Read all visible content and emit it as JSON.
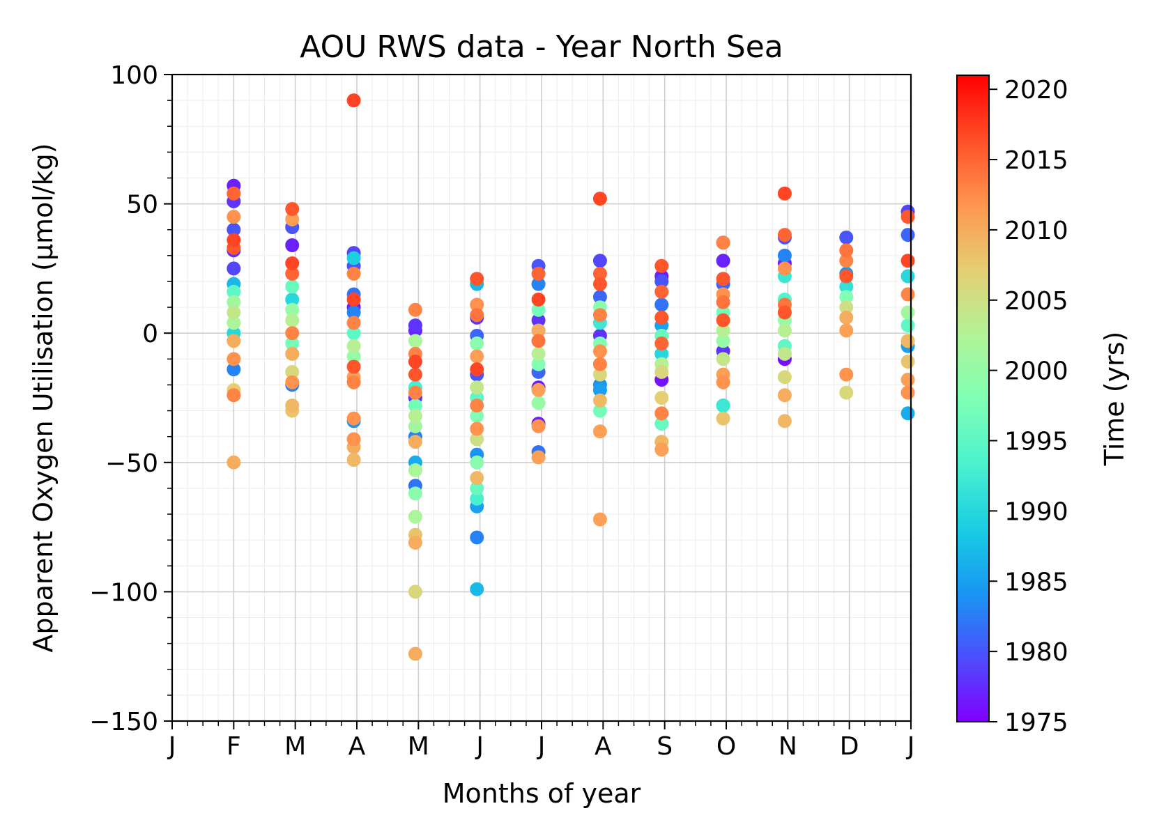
{
  "chart_data": {
    "type": "scatter",
    "title": "AOU RWS data - Year North Sea",
    "xlabel": "Months of year",
    "ylabel": "Apparent Oxygen Utilisation (µmol/kg)",
    "x_ticks": [
      "J",
      "F",
      "M",
      "A",
      "M",
      "J",
      "J",
      "A",
      "S",
      "O",
      "N",
      "D",
      "J"
    ],
    "ylim": [
      -150,
      100
    ],
    "y_ticks": [
      100,
      50,
      0,
      -50,
      -100,
      -150
    ],
    "y_tick_labels": [
      "100",
      "50",
      "0",
      "−50",
      "−100",
      "−150"
    ],
    "grid": true,
    "colorbar": {
      "label": "Time (yrs)",
      "range": [
        1975,
        2021
      ],
      "ticks": [
        1975,
        1980,
        1985,
        1990,
        1995,
        2000,
        2005,
        2010,
        2015,
        2020
      ],
      "colormap": "rainbow"
    },
    "points": [
      {
        "month": 1,
        "aou": 57,
        "year": 1977
      },
      {
        "month": 1,
        "aou": 54,
        "year": 2015
      },
      {
        "month": 1,
        "aou": 51,
        "year": 1978
      },
      {
        "month": 1,
        "aou": 45,
        "year": 2012
      },
      {
        "month": 1,
        "aou": 40,
        "year": 1980
      },
      {
        "month": 1,
        "aou": 36,
        "year": 2017
      },
      {
        "month": 1,
        "aou": 33,
        "year": 2016
      },
      {
        "month": 1,
        "aou": 32,
        "year": 1978
      },
      {
        "month": 1,
        "aou": 25,
        "year": 1979
      },
      {
        "month": 1,
        "aou": 19,
        "year": 1987
      },
      {
        "month": 1,
        "aou": 16,
        "year": 1995
      },
      {
        "month": 1,
        "aou": 12,
        "year": 2001
      },
      {
        "month": 1,
        "aou": 8,
        "year": 2004
      },
      {
        "month": 1,
        "aou": 4,
        "year": 2002
      },
      {
        "month": 1,
        "aou": 0,
        "year": 1990
      },
      {
        "month": 1,
        "aou": -3,
        "year": 2010
      },
      {
        "month": 1,
        "aou": -10,
        "year": 2012
      },
      {
        "month": 1,
        "aou": -14,
        "year": 1983
      },
      {
        "month": 1,
        "aou": -22,
        "year": 2007
      },
      {
        "month": 1,
        "aou": -24,
        "year": 2013
      },
      {
        "month": 1,
        "aou": -50,
        "year": 2010
      },
      {
        "month": 1.95,
        "aou": 48,
        "year": 2016
      },
      {
        "month": 1.95,
        "aou": 44,
        "year": 2011
      },
      {
        "month": 1.95,
        "aou": 41,
        "year": 1980
      },
      {
        "month": 1.95,
        "aou": 34,
        "year": 1977
      },
      {
        "month": 1.95,
        "aou": 27,
        "year": 2017
      },
      {
        "month": 1.95,
        "aou": 23,
        "year": 2015
      },
      {
        "month": 1.95,
        "aou": 18,
        "year": 1996
      },
      {
        "month": 1.95,
        "aou": 13,
        "year": 1990
      },
      {
        "month": 1.95,
        "aou": 9,
        "year": 2000
      },
      {
        "month": 1.95,
        "aou": 5,
        "year": 2003
      },
      {
        "month": 1.95,
        "aou": 0,
        "year": 2013
      },
      {
        "month": 1.95,
        "aou": -4,
        "year": 1997
      },
      {
        "month": 1.95,
        "aou": -8,
        "year": 2010
      },
      {
        "month": 1.95,
        "aou": -15,
        "year": 2006
      },
      {
        "month": 1.95,
        "aou": -19,
        "year": 2012
      },
      {
        "month": 1.95,
        "aou": -20,
        "year": 1983
      },
      {
        "month": 1.95,
        "aou": -28,
        "year": 2009
      },
      {
        "month": 1.95,
        "aou": -30,
        "year": 2008
      },
      {
        "month": 2.95,
        "aou": 90,
        "year": 2017
      },
      {
        "month": 2.95,
        "aou": 31,
        "year": 1979
      },
      {
        "month": 2.95,
        "aou": 29,
        "year": 1989
      },
      {
        "month": 2.95,
        "aou": 26,
        "year": 1980
      },
      {
        "month": 2.95,
        "aou": 23,
        "year": 2013
      },
      {
        "month": 2.95,
        "aou": 15,
        "year": 1982
      },
      {
        "month": 2.95,
        "aou": 13,
        "year": 2017
      },
      {
        "month": 2.95,
        "aou": 10,
        "year": 1977
      },
      {
        "month": 2.95,
        "aou": 8,
        "year": 1983
      },
      {
        "month": 2.95,
        "aou": 4,
        "year": 2013
      },
      {
        "month": 2.95,
        "aou": 0,
        "year": 1995
      },
      {
        "month": 2.95,
        "aou": -5,
        "year": 2003
      },
      {
        "month": 2.95,
        "aou": -9,
        "year": 2000
      },
      {
        "month": 2.95,
        "aou": -13,
        "year": 2016
      },
      {
        "month": 2.95,
        "aou": -17,
        "year": 2011
      },
      {
        "month": 2.95,
        "aou": -19,
        "year": 2013
      },
      {
        "month": 2.95,
        "aou": -33,
        "year": 2012
      },
      {
        "month": 2.95,
        "aou": -34,
        "year": 1984
      },
      {
        "month": 2.95,
        "aou": -41,
        "year": 2012
      },
      {
        "month": 2.95,
        "aou": -44,
        "year": 2010
      },
      {
        "month": 2.95,
        "aou": -49,
        "year": 2009
      },
      {
        "month": 3.95,
        "aou": 9,
        "year": 2013
      },
      {
        "month": 3.95,
        "aou": 3,
        "year": 1978
      },
      {
        "month": 3.95,
        "aou": 1,
        "year": 1977
      },
      {
        "month": 3.95,
        "aou": -3,
        "year": 2002
      },
      {
        "month": 3.95,
        "aou": -8,
        "year": 2013
      },
      {
        "month": 3.95,
        "aou": -11,
        "year": 2017
      },
      {
        "month": 3.95,
        "aou": -16,
        "year": 2016
      },
      {
        "month": 3.95,
        "aou": -21,
        "year": 1993
      },
      {
        "month": 3.95,
        "aou": -23,
        "year": 2013
      },
      {
        "month": 3.95,
        "aou": -25,
        "year": 1978
      },
      {
        "month": 3.95,
        "aou": -28,
        "year": 1997
      },
      {
        "month": 3.95,
        "aou": -32,
        "year": 2003
      },
      {
        "month": 3.95,
        "aou": -36,
        "year": 2001
      },
      {
        "month": 3.95,
        "aou": -40,
        "year": 1983
      },
      {
        "month": 3.95,
        "aou": -42,
        "year": 2010
      },
      {
        "month": 3.95,
        "aou": -50,
        "year": 1986
      },
      {
        "month": 3.95,
        "aou": -53,
        "year": 2002
      },
      {
        "month": 3.95,
        "aou": -59,
        "year": 1982
      },
      {
        "month": 3.95,
        "aou": -62,
        "year": 1999
      },
      {
        "month": 3.95,
        "aou": -71,
        "year": 2002
      },
      {
        "month": 3.95,
        "aou": -78,
        "year": 2008
      },
      {
        "month": 3.95,
        "aou": -81,
        "year": 2010
      },
      {
        "month": 3.95,
        "aou": -100,
        "year": 2006
      },
      {
        "month": 3.95,
        "aou": -124,
        "year": 2010
      },
      {
        "month": 4.95,
        "aou": 21,
        "year": 2016
      },
      {
        "month": 4.95,
        "aou": 19,
        "year": 1987
      },
      {
        "month": 4.95,
        "aou": 11,
        "year": 2012
      },
      {
        "month": 4.95,
        "aou": 7,
        "year": 2014
      },
      {
        "month": 4.95,
        "aou": 6,
        "year": 1978
      },
      {
        "month": 4.95,
        "aou": -1,
        "year": 1981
      },
      {
        "month": 4.95,
        "aou": -4,
        "year": 1999
      },
      {
        "month": 4.95,
        "aou": -9,
        "year": 2011
      },
      {
        "month": 4.95,
        "aou": -14,
        "year": 2017
      },
      {
        "month": 4.95,
        "aou": -16,
        "year": 1980
      },
      {
        "month": 4.95,
        "aou": -21,
        "year": 2004
      },
      {
        "month": 4.95,
        "aou": -25,
        "year": 1995
      },
      {
        "month": 4.95,
        "aou": -28,
        "year": 2013
      },
      {
        "month": 4.95,
        "aou": -32,
        "year": 1998
      },
      {
        "month": 4.95,
        "aou": -37,
        "year": 2012
      },
      {
        "month": 4.95,
        "aou": -41,
        "year": 2005
      },
      {
        "month": 4.95,
        "aou": -47,
        "year": 1984
      },
      {
        "month": 4.95,
        "aou": -50,
        "year": 1999
      },
      {
        "month": 4.95,
        "aou": -56,
        "year": 2009
      },
      {
        "month": 4.95,
        "aou": -60,
        "year": 1996
      },
      {
        "month": 4.95,
        "aou": -64,
        "year": 1993
      },
      {
        "month": 4.95,
        "aou": -67,
        "year": 1985
      },
      {
        "month": 4.95,
        "aou": -79,
        "year": 1983
      },
      {
        "month": 4.95,
        "aou": -99,
        "year": 1987
      },
      {
        "month": 5.95,
        "aou": 26,
        "year": 1980
      },
      {
        "month": 5.95,
        "aou": 23,
        "year": 2015
      },
      {
        "month": 5.95,
        "aou": 19,
        "year": 1983
      },
      {
        "month": 5.95,
        "aou": 13,
        "year": 2017
      },
      {
        "month": 5.95,
        "aou": 9,
        "year": 1997
      },
      {
        "month": 5.95,
        "aou": 5,
        "year": 1978
      },
      {
        "month": 5.95,
        "aou": 1,
        "year": 2010
      },
      {
        "month": 5.95,
        "aou": -3,
        "year": 2014
      },
      {
        "month": 5.95,
        "aou": -8,
        "year": 2003
      },
      {
        "month": 5.95,
        "aou": -12,
        "year": 1998
      },
      {
        "month": 5.95,
        "aou": -15,
        "year": 1981
      },
      {
        "month": 5.95,
        "aou": -21,
        "year": 1977
      },
      {
        "month": 5.95,
        "aou": -22,
        "year": 2011
      },
      {
        "month": 5.95,
        "aou": -27,
        "year": 2000
      },
      {
        "month": 5.95,
        "aou": -35,
        "year": 1977
      },
      {
        "month": 5.95,
        "aou": -36,
        "year": 2012
      },
      {
        "month": 5.95,
        "aou": -46,
        "year": 1982
      },
      {
        "month": 5.95,
        "aou": -48,
        "year": 2011
      },
      {
        "month": 6.95,
        "aou": 52,
        "year": 2017
      },
      {
        "month": 6.95,
        "aou": 28,
        "year": 1979
      },
      {
        "month": 6.95,
        "aou": 23,
        "year": 2015
      },
      {
        "month": 6.95,
        "aou": 19,
        "year": 2016
      },
      {
        "month": 6.95,
        "aou": 14,
        "year": 1981
      },
      {
        "month": 6.95,
        "aou": 10,
        "year": 1999
      },
      {
        "month": 6.95,
        "aou": 7,
        "year": 2013
      },
      {
        "month": 6.95,
        "aou": 4,
        "year": 1992
      },
      {
        "month": 6.95,
        "aou": -1,
        "year": 1978
      },
      {
        "month": 6.95,
        "aou": -4,
        "year": 1998
      },
      {
        "month": 6.95,
        "aou": -7,
        "year": 2012
      },
      {
        "month": 6.95,
        "aou": -12,
        "year": 2013
      },
      {
        "month": 6.95,
        "aou": -16,
        "year": 2006
      },
      {
        "month": 6.95,
        "aou": -20,
        "year": 1984
      },
      {
        "month": 6.95,
        "aou": -22,
        "year": 1985
      },
      {
        "month": 6.95,
        "aou": -26,
        "year": 2009
      },
      {
        "month": 6.95,
        "aou": -30,
        "year": 1997
      },
      {
        "month": 6.95,
        "aou": -38,
        "year": 2011
      },
      {
        "month": 6.95,
        "aou": -72,
        "year": 2011
      },
      {
        "month": 7.95,
        "aou": 26,
        "year": 2016
      },
      {
        "month": 7.95,
        "aou": 22,
        "year": 1977
      },
      {
        "month": 7.95,
        "aou": 20,
        "year": 1980
      },
      {
        "month": 7.95,
        "aou": 16,
        "year": 2015
      },
      {
        "month": 7.95,
        "aou": 11,
        "year": 1982
      },
      {
        "month": 7.95,
        "aou": 6,
        "year": 2016
      },
      {
        "month": 7.95,
        "aou": 3,
        "year": 1985
      },
      {
        "month": 7.95,
        "aou": -1,
        "year": 1996
      },
      {
        "month": 7.95,
        "aou": -4,
        "year": 2015
      },
      {
        "month": 7.95,
        "aou": -8,
        "year": 1990
      },
      {
        "month": 7.95,
        "aou": -12,
        "year": 2003
      },
      {
        "month": 7.95,
        "aou": -15,
        "year": 2006
      },
      {
        "month": 7.95,
        "aou": -18,
        "year": 1976
      },
      {
        "month": 7.95,
        "aou": -25,
        "year": 2007
      },
      {
        "month": 7.95,
        "aou": -31,
        "year": 2013
      },
      {
        "month": 7.95,
        "aou": -35,
        "year": 1996
      },
      {
        "month": 7.95,
        "aou": -42,
        "year": 2009
      },
      {
        "month": 7.95,
        "aou": -45,
        "year": 2011
      },
      {
        "month": 8.95,
        "aou": 35,
        "year": 1978
      },
      {
        "month": 8.95,
        "aou": 35,
        "year": 2013
      },
      {
        "month": 8.95,
        "aou": 28,
        "year": 1977
      },
      {
        "month": 8.95,
        "aou": 21,
        "year": 2016
      },
      {
        "month": 8.95,
        "aou": 19,
        "year": 1981
      },
      {
        "month": 8.95,
        "aou": 15,
        "year": 2012
      },
      {
        "month": 8.95,
        "aou": 12,
        "year": 2014
      },
      {
        "month": 8.95,
        "aou": 8,
        "year": 1997
      },
      {
        "month": 8.95,
        "aou": 5,
        "year": 2016
      },
      {
        "month": 8.95,
        "aou": 1,
        "year": 2003
      },
      {
        "month": 8.95,
        "aou": -3,
        "year": 2000
      },
      {
        "month": 8.95,
        "aou": -7,
        "year": 1978
      },
      {
        "month": 8.95,
        "aou": -10,
        "year": 2004
      },
      {
        "month": 8.95,
        "aou": -16,
        "year": 2011
      },
      {
        "month": 8.95,
        "aou": -19,
        "year": 2012
      },
      {
        "month": 8.95,
        "aou": -28,
        "year": 1986
      },
      {
        "month": 8.95,
        "aou": -28,
        "year": 1992
      },
      {
        "month": 8.95,
        "aou": -33,
        "year": 2008
      },
      {
        "month": 9.95,
        "aou": 54,
        "year": 2017
      },
      {
        "month": 9.95,
        "aou": 38,
        "year": 2015
      },
      {
        "month": 9.95,
        "aou": 37,
        "year": 1980
      },
      {
        "month": 9.95,
        "aou": 30,
        "year": 1983
      },
      {
        "month": 9.95,
        "aou": 27,
        "year": 1977
      },
      {
        "month": 9.95,
        "aou": 25,
        "year": 2012
      },
      {
        "month": 9.95,
        "aou": 22,
        "year": 1992
      },
      {
        "month": 9.95,
        "aou": 13,
        "year": 1994
      },
      {
        "month": 9.95,
        "aou": 11,
        "year": 2014
      },
      {
        "month": 9.95,
        "aou": 8,
        "year": 2016
      },
      {
        "month": 9.95,
        "aou": 5,
        "year": 2000
      },
      {
        "month": 9.95,
        "aou": 1,
        "year": 2003
      },
      {
        "month": 9.95,
        "aou": -5,
        "year": 1995
      },
      {
        "month": 9.95,
        "aou": -8,
        "year": 2004
      },
      {
        "month": 9.95,
        "aou": -10,
        "year": 1976
      },
      {
        "month": 9.95,
        "aou": -17,
        "year": 2006
      },
      {
        "month": 9.95,
        "aou": -24,
        "year": 2010
      },
      {
        "month": 9.95,
        "aou": -34,
        "year": 2009
      },
      {
        "month": 10.95,
        "aou": 37,
        "year": 1980
      },
      {
        "month": 10.95,
        "aou": 32,
        "year": 2014
      },
      {
        "month": 10.95,
        "aou": 28,
        "year": 2013
      },
      {
        "month": 10.95,
        "aou": 23,
        "year": 1984
      },
      {
        "month": 10.95,
        "aou": 22,
        "year": 2016
      },
      {
        "month": 10.95,
        "aou": 18,
        "year": 1991
      },
      {
        "month": 10.95,
        "aou": 14,
        "year": 1998
      },
      {
        "month": 10.95,
        "aou": 10,
        "year": 2005
      },
      {
        "month": 10.95,
        "aou": 6,
        "year": 2010
      },
      {
        "month": 10.95,
        "aou": 1,
        "year": 2011
      },
      {
        "month": 10.95,
        "aou": -16,
        "year": 2012
      },
      {
        "month": 10.95,
        "aou": -23,
        "year": 2006
      },
      {
        "month": 11.95,
        "aou": 47,
        "year": 1979
      },
      {
        "month": 11.95,
        "aou": 45,
        "year": 2016
      },
      {
        "month": 11.95,
        "aou": 38,
        "year": 1981
      },
      {
        "month": 11.95,
        "aou": 28,
        "year": 2017
      },
      {
        "month": 11.95,
        "aou": 22,
        "year": 1990
      },
      {
        "month": 11.95,
        "aou": 15,
        "year": 2013
      },
      {
        "month": 11.95,
        "aou": 8,
        "year": 2001
      },
      {
        "month": 11.95,
        "aou": 3,
        "year": 1995
      },
      {
        "month": 11.95,
        "aou": -3,
        "year": 2009
      },
      {
        "month": 11.95,
        "aou": -5,
        "year": 1985
      },
      {
        "month": 11.95,
        "aou": -11,
        "year": 2008
      },
      {
        "month": 11.95,
        "aou": -18,
        "year": 2011
      },
      {
        "month": 11.95,
        "aou": -23,
        "year": 2012
      },
      {
        "month": 11.95,
        "aou": -31,
        "year": 1986
      }
    ]
  }
}
